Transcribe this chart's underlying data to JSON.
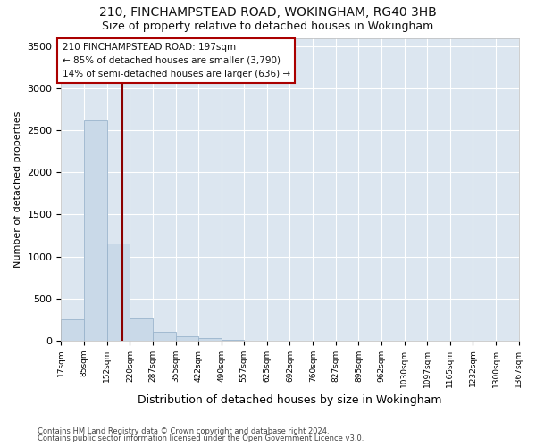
{
  "title1": "210, FINCHAMPSTEAD ROAD, WOKINGHAM, RG40 3HB",
  "title2": "Size of property relative to detached houses in Wokingham",
  "xlabel": "Distribution of detached houses by size in Wokingham",
  "ylabel": "Number of detached properties",
  "footer1": "Contains HM Land Registry data © Crown copyright and database right 2024.",
  "footer2": "Contains public sector information licensed under the Open Government Licence v3.0.",
  "annotation_line1": "210 FINCHAMPSTEAD ROAD: 197sqm",
  "annotation_line2": "← 85% of detached houses are smaller (3,790)",
  "annotation_line3": "14% of semi-detached houses are larger (636) →",
  "bar_color": "#c9d9e8",
  "bar_edgecolor": "#9ab4cc",
  "redline_color": "#8b0000",
  "redline_x": 197,
  "bins": [
    17,
    85,
    152,
    220,
    287,
    355,
    422,
    490,
    557,
    625,
    692,
    760,
    827,
    895,
    962,
    1030,
    1097,
    1165,
    1232,
    1300,
    1367
  ],
  "bar_heights": [
    250,
    2620,
    1150,
    260,
    100,
    50,
    30,
    5,
    2,
    1,
    1,
    0,
    0,
    0,
    0,
    0,
    0,
    0,
    0,
    0
  ],
  "ylim": [
    0,
    3600
  ],
  "yticks": [
    0,
    500,
    1000,
    1500,
    2000,
    2500,
    3000,
    3500
  ],
  "background_color": "#ffffff",
  "plot_bg_color": "#dce6f0",
  "grid_color": "#ffffff",
  "title_fontsize": 10,
  "subtitle_fontsize": 9,
  "ylabel_fontsize": 8,
  "xlabel_fontsize": 9,
  "tick_fontsize": 6.5,
  "footer_fontsize": 6,
  "ann_fontsize": 7.5
}
